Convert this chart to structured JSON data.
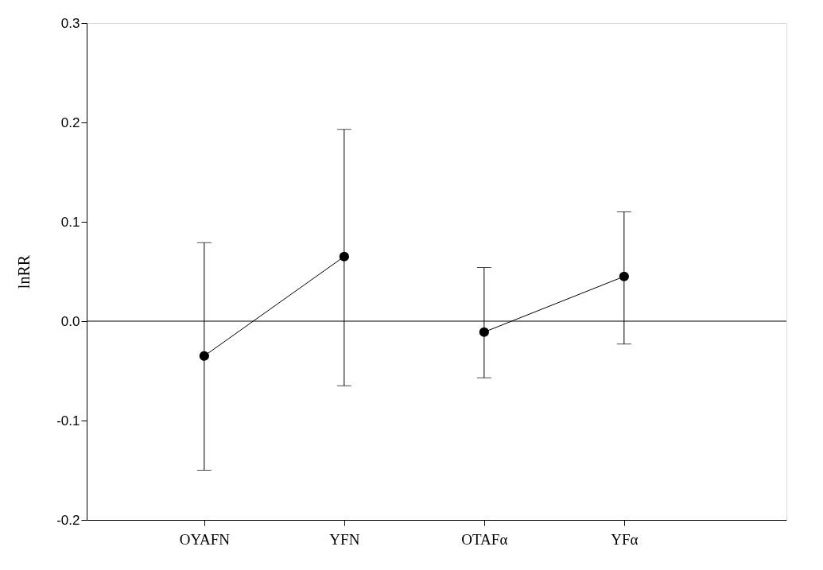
{
  "chart_data": {
    "type": "line",
    "ylabel": "lnRR",
    "categories": [
      "OYAFN",
      "YFN",
      "OTAFα",
      "YFα"
    ],
    "series": [
      {
        "color": "#000000",
        "values": [
          -0.035,
          0.065,
          null,
          null
        ],
        "errors": [
          [
            -0.15,
            0.079
          ],
          [
            -0.065,
            0.193
          ],
          null,
          null
        ]
      },
      {
        "color": "#000000",
        "values": [
          null,
          null,
          -0.011,
          0.045
        ],
        "errors": [
          null,
          null,
          [
            -0.057,
            0.054
          ],
          [
            -0.023,
            0.11
          ]
        ]
      }
    ],
    "ylim": [
      -0.2,
      0.3
    ],
    "yticks": [
      {
        "value": -0.2,
        "label": "-0.2"
      },
      {
        "value": -0.1,
        "label": "-0.1"
      },
      {
        "value": 0,
        "label": "0.0"
      },
      {
        "value": 0.1,
        "label": "0.1"
      },
      {
        "value": 0.2,
        "label": "0.2"
      },
      {
        "value": 0.3,
        "label": "0.3"
      }
    ],
    "ref_lines": [
      {
        "axis": "y",
        "value": 0,
        "color": "#000000"
      }
    ],
    "marker": "circle",
    "line_style": "solid",
    "grid": false
  }
}
